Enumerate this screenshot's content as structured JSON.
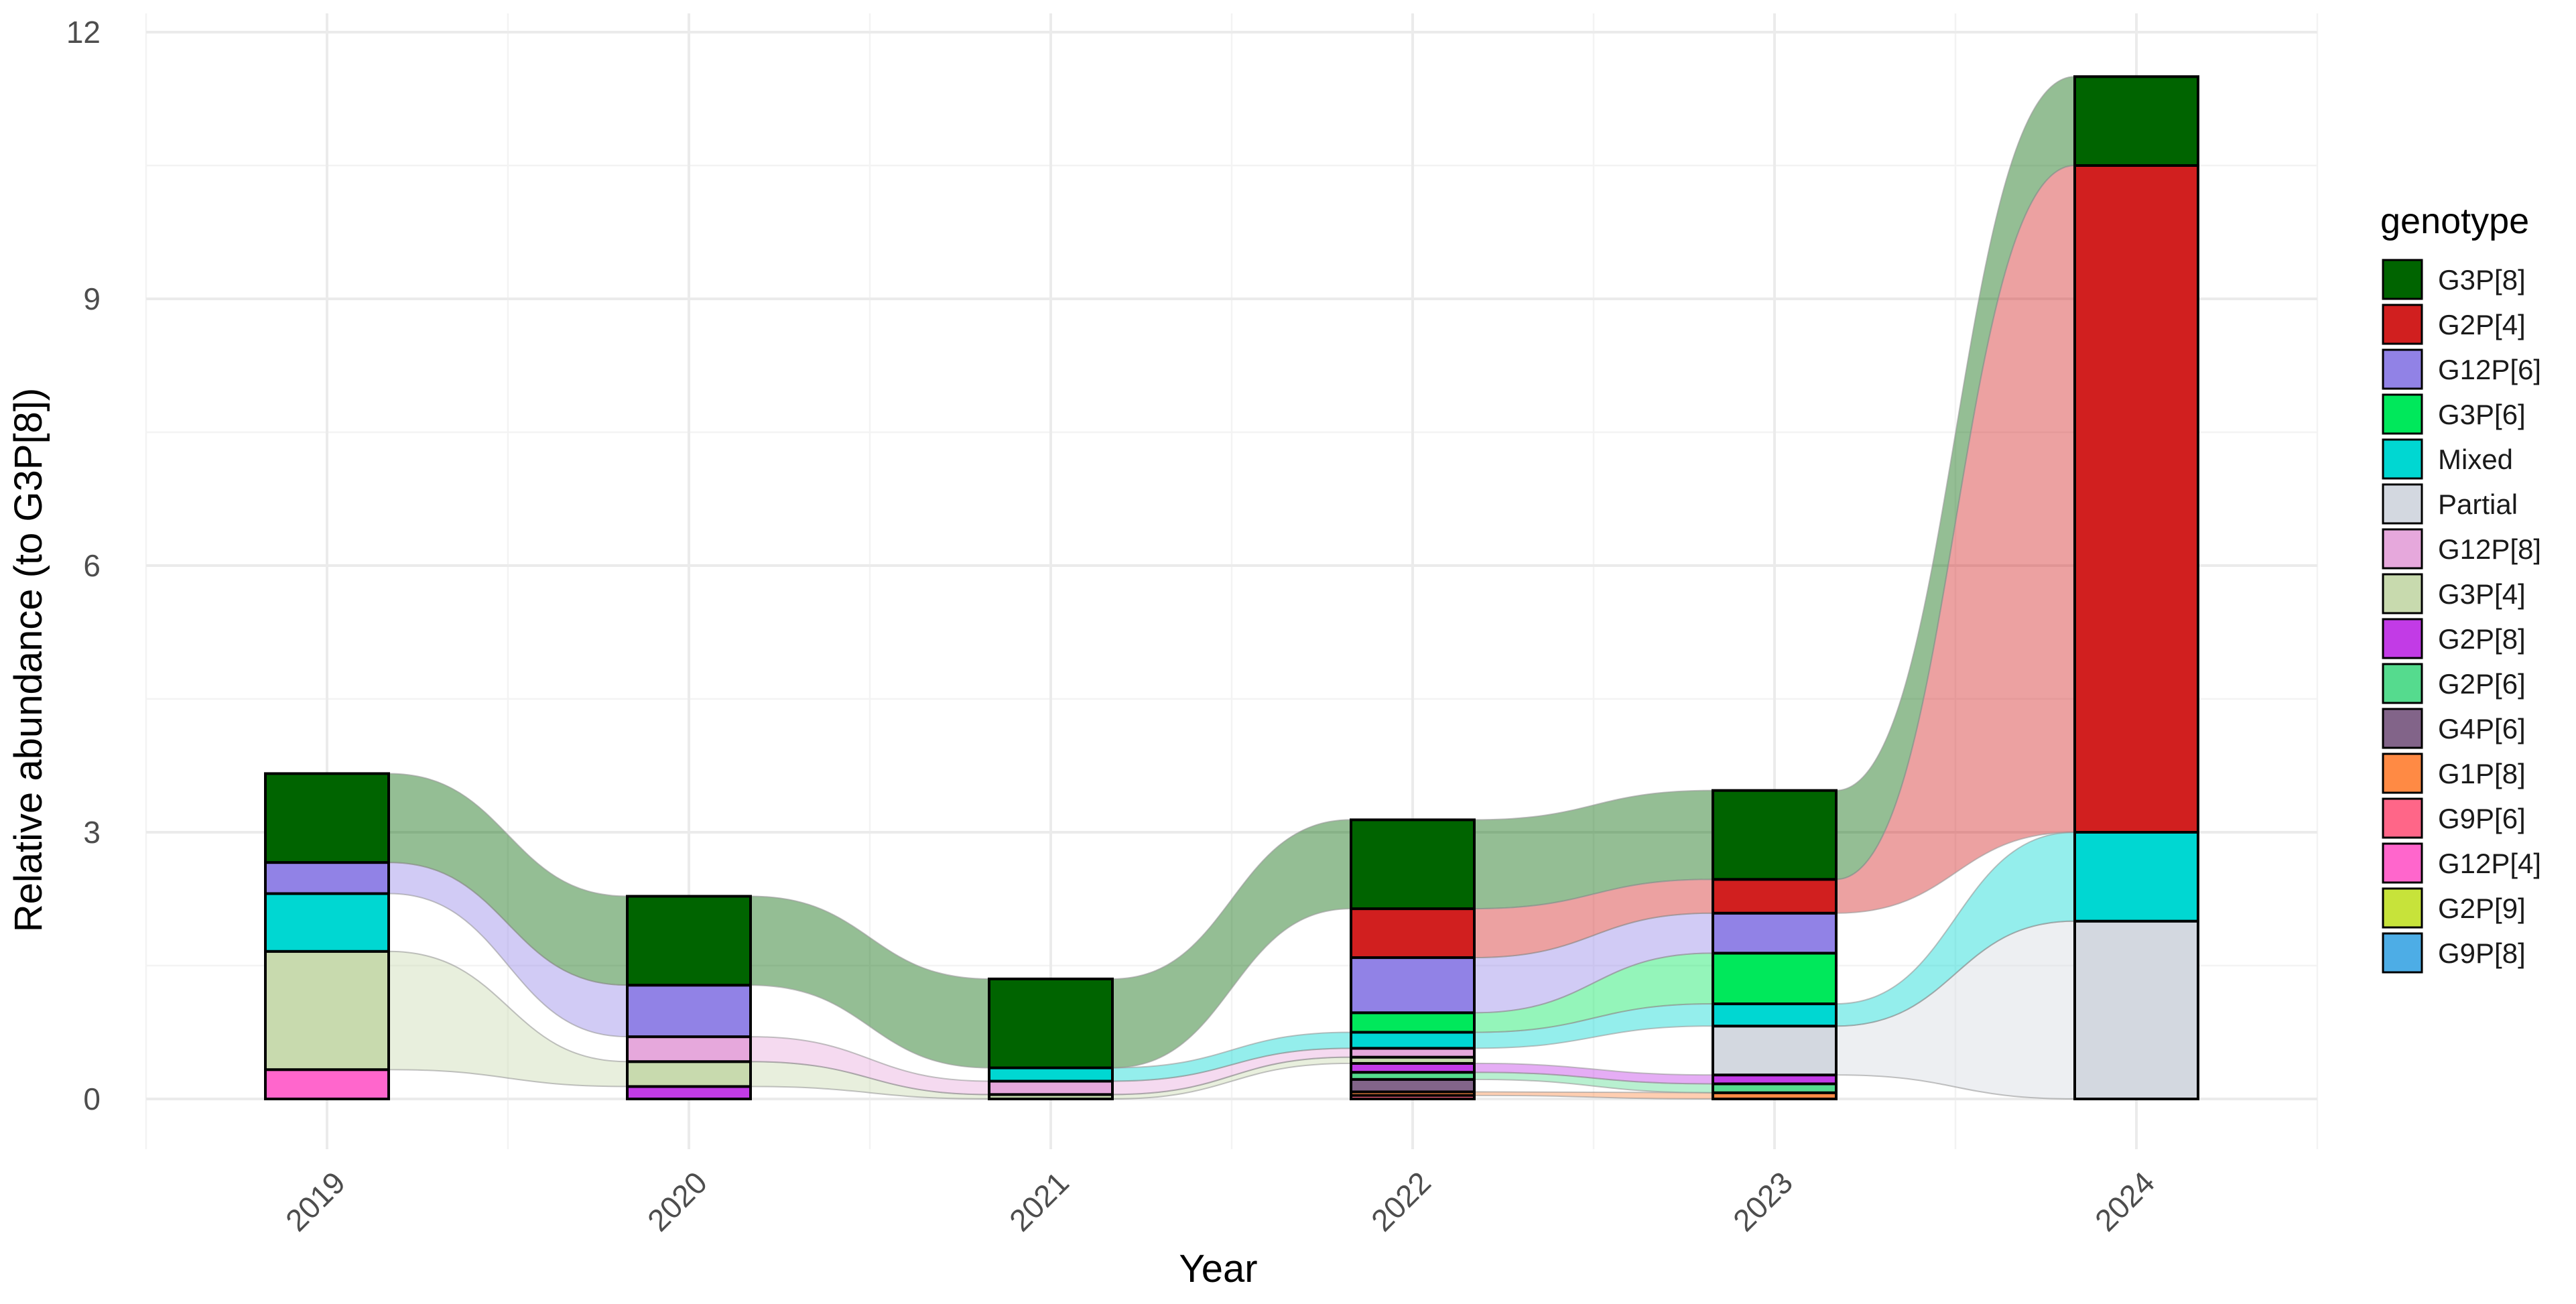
{
  "chart_data": {
    "type": "bar",
    "subtype": "stacked-bar-with-alluvial-flows",
    "title": "",
    "xlabel": "Year",
    "ylabel": "Relative abundance (to G3P[8])",
    "ylim": [
      -0.5,
      12
    ],
    "yticks": [
      0,
      3,
      6,
      9,
      12
    ],
    "grid": true,
    "legend": {
      "title": "genotype",
      "placement": "right"
    },
    "categories": [
      "2019",
      "2020",
      "2021",
      "2022",
      "2023",
      "2024"
    ],
    "series": [
      {
        "name": "G3P[8]",
        "color": "#006400",
        "values": [
          1.0,
          1.0,
          1.0,
          1.0,
          1.0,
          1.0
        ]
      },
      {
        "name": "G2P[4]",
        "color": "#D11F1F",
        "values": [
          0,
          0,
          0,
          0.55,
          0.38,
          7.5
        ]
      },
      {
        "name": "G12P[6]",
        "color": "#9182E6",
        "values": [
          0.35,
          0.58,
          0,
          0.62,
          0.45,
          0
        ]
      },
      {
        "name": "G3P[6]",
        "color": "#00E85B",
        "values": [
          0,
          0,
          0,
          0.22,
          0.57,
          0
        ]
      },
      {
        "name": "Mixed",
        "color": "#00D7D2",
        "values": [
          0.65,
          0,
          0.15,
          0.18,
          0.25,
          1.0
        ]
      },
      {
        "name": "Partial",
        "color": "#D3D8E0",
        "values": [
          0,
          0,
          0,
          0,
          0.55,
          2.0
        ]
      },
      {
        "name": "G12P[8]",
        "color": "#E6A8DC",
        "values": [
          0,
          0.28,
          0.15,
          0.1,
          0,
          0
        ]
      },
      {
        "name": "G3P[4]",
        "color": "#C8DAAE",
        "values": [
          1.33,
          0.28,
          0.05,
          0.07,
          0,
          0
        ]
      },
      {
        "name": "G2P[8]",
        "color": "#C23BE6",
        "values": [
          0,
          0.14,
          0,
          0.1,
          0.1,
          0
        ]
      },
      {
        "name": "G2P[6]",
        "color": "#55DB8E",
        "values": [
          0,
          0,
          0,
          0.08,
          0.1,
          0
        ]
      },
      {
        "name": "G4P[6]",
        "color": "#826489",
        "values": [
          0,
          0,
          0,
          0.14,
          0,
          0
        ]
      },
      {
        "name": "G1P[8]",
        "color": "#FF8A44",
        "values": [
          0,
          0,
          0,
          0.04,
          0.07,
          0
        ]
      },
      {
        "name": "G9P[6]",
        "color": "#FF6688",
        "values": [
          0,
          0,
          0,
          0.04,
          0,
          0
        ]
      },
      {
        "name": "G12P[4]",
        "color": "#FF66CC",
        "values": [
          0.33,
          0,
          0,
          0,
          0,
          0
        ]
      },
      {
        "name": "G2P[9]",
        "color": "#C7E33A",
        "values": [
          0,
          0,
          0,
          0,
          0,
          0
        ]
      },
      {
        "name": "G9P[8]",
        "color": "#4DADE6",
        "values": [
          0,
          0,
          0,
          0,
          0,
          0
        ]
      }
    ],
    "stack_order_bottom_to_top": [
      "G12P[4]",
      "G9P[6]",
      "G1P[8]",
      "G2P[9]",
      "G9P[8]",
      "G4P[6]",
      "G2P[6]",
      "G2P[8]",
      "G3P[4]",
      "G12P[8]",
      "Partial",
      "Mixed",
      "G3P[6]",
      "G12P[6]",
      "G2P[4]",
      "G3P[8]"
    ]
  }
}
